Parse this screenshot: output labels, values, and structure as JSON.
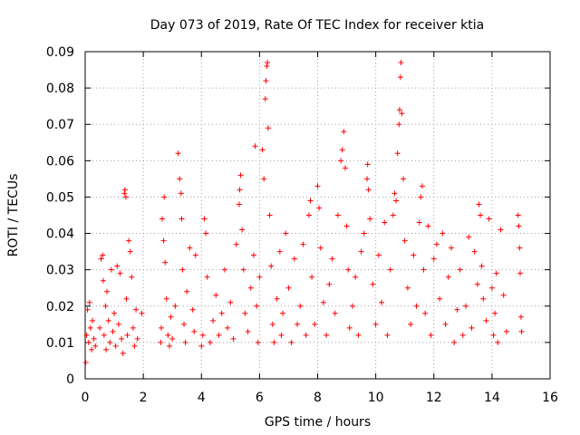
{
  "chart_data": {
    "type": "scatter",
    "title": "Day 073 of 2019, Rate Of TEC Index for receiver ktia",
    "xlabel": "GPS time / hours",
    "ylabel": "ROTI / TECUs",
    "xlim": [
      0,
      16
    ],
    "ylim": [
      0,
      0.09
    ],
    "x_ticks": [
      0,
      2,
      4,
      6,
      8,
      10,
      12,
      14,
      16
    ],
    "x_tick_labels": [
      "0",
      "2",
      "4",
      "6",
      "8",
      "10",
      "12",
      "14",
      "16"
    ],
    "y_ticks": [
      0,
      0.01,
      0.02,
      0.03,
      0.04,
      0.05,
      0.06,
      0.07,
      0.08,
      0.09
    ],
    "y_tick_labels": [
      "0",
      "0.01",
      "0.02",
      "0.03",
      "0.04",
      "0.05",
      "0.06",
      "0.07",
      "0.08",
      "0.09"
    ],
    "grid": true,
    "marker": "+",
    "color": "#ff0000",
    "series": [
      {
        "name": "ROTI",
        "points": [
          [
            0.02,
            0.0045
          ],
          [
            0.05,
            0.012
          ],
          [
            0.08,
            0.019
          ],
          [
            0.12,
            0.01
          ],
          [
            0.15,
            0.021
          ],
          [
            0.18,
            0.014
          ],
          [
            0.22,
            0.008
          ],
          [
            0.25,
            0.016
          ],
          [
            0.3,
            0.011
          ],
          [
            0.35,
            0.009
          ],
          [
            0.5,
            0.014
          ],
          [
            0.55,
            0.033
          ],
          [
            0.6,
            0.034
          ],
          [
            0.62,
            0.027
          ],
          [
            0.65,
            0.012
          ],
          [
            0.7,
            0.02
          ],
          [
            0.72,
            0.008
          ],
          [
            0.75,
            0.024
          ],
          [
            0.8,
            0.016
          ],
          [
            0.85,
            0.01
          ],
          [
            0.9,
            0.03
          ],
          [
            0.95,
            0.013
          ],
          [
            1.0,
            0.018
          ],
          [
            1.05,
            0.009
          ],
          [
            1.1,
            0.031
          ],
          [
            1.15,
            0.015
          ],
          [
            1.2,
            0.029
          ],
          [
            1.25,
            0.011
          ],
          [
            1.3,
            0.007
          ],
          [
            1.35,
            0.051
          ],
          [
            1.37,
            0.052
          ],
          [
            1.4,
            0.05
          ],
          [
            1.42,
            0.022
          ],
          [
            1.45,
            0.012
          ],
          [
            1.5,
            0.038
          ],
          [
            1.55,
            0.035
          ],
          [
            1.6,
            0.028
          ],
          [
            1.65,
            0.014
          ],
          [
            1.7,
            0.009
          ],
          [
            1.75,
            0.019
          ],
          [
            1.8,
            0.011
          ],
          [
            1.95,
            0.018
          ],
          [
            2.6,
            0.01
          ],
          [
            2.62,
            0.014
          ],
          [
            2.65,
            0.044
          ],
          [
            2.7,
            0.038
          ],
          [
            2.72,
            0.05
          ],
          [
            2.75,
            0.032
          ],
          [
            2.8,
            0.022
          ],
          [
            2.85,
            0.012
          ],
          [
            2.9,
            0.009
          ],
          [
            2.95,
            0.017
          ],
          [
            3.0,
            0.011
          ],
          [
            3.1,
            0.02
          ],
          [
            3.2,
            0.062
          ],
          [
            3.25,
            0.055
          ],
          [
            3.3,
            0.051
          ],
          [
            3.32,
            0.044
          ],
          [
            3.35,
            0.03
          ],
          [
            3.4,
            0.015
          ],
          [
            3.45,
            0.01
          ],
          [
            3.5,
            0.024
          ],
          [
            3.6,
            0.036
          ],
          [
            3.7,
            0.019
          ],
          [
            3.75,
            0.013
          ],
          [
            3.8,
            0.034
          ],
          [
            4.0,
            0.009
          ],
          [
            4.05,
            0.012
          ],
          [
            4.1,
            0.044
          ],
          [
            4.15,
            0.04
          ],
          [
            4.2,
            0.028
          ],
          [
            4.3,
            0.01
          ],
          [
            4.4,
            0.016
          ],
          [
            4.5,
            0.023
          ],
          [
            4.6,
            0.012
          ],
          [
            4.7,
            0.018
          ],
          [
            4.8,
            0.03
          ],
          [
            4.9,
            0.014
          ],
          [
            5.0,
            0.021
          ],
          [
            5.1,
            0.011
          ],
          [
            5.2,
            0.037
          ],
          [
            5.3,
            0.048
          ],
          [
            5.32,
            0.052
          ],
          [
            5.35,
            0.056
          ],
          [
            5.4,
            0.041
          ],
          [
            5.45,
            0.03
          ],
          [
            5.5,
            0.018
          ],
          [
            5.6,
            0.013
          ],
          [
            5.7,
            0.025
          ],
          [
            5.8,
            0.034
          ],
          [
            5.85,
            0.064
          ],
          [
            5.9,
            0.02
          ],
          [
            5.95,
            0.01
          ],
          [
            6.0,
            0.028
          ],
          [
            6.1,
            0.063
          ],
          [
            6.15,
            0.055
          ],
          [
            6.2,
            0.077
          ],
          [
            6.22,
            0.082
          ],
          [
            6.25,
            0.086
          ],
          [
            6.27,
            0.087
          ],
          [
            6.3,
            0.069
          ],
          [
            6.35,
            0.045
          ],
          [
            6.4,
            0.031
          ],
          [
            6.45,
            0.015
          ],
          [
            6.5,
            0.01
          ],
          [
            6.6,
            0.022
          ],
          [
            6.7,
            0.035
          ],
          [
            6.75,
            0.012
          ],
          [
            6.8,
            0.018
          ],
          [
            6.9,
            0.04
          ],
          [
            7.0,
            0.025
          ],
          [
            7.1,
            0.01
          ],
          [
            7.2,
            0.033
          ],
          [
            7.3,
            0.015
          ],
          [
            7.4,
            0.02
          ],
          [
            7.5,
            0.037
          ],
          [
            7.6,
            0.012
          ],
          [
            7.7,
            0.045
          ],
          [
            7.75,
            0.049
          ],
          [
            7.8,
            0.028
          ],
          [
            7.9,
            0.015
          ],
          [
            8.0,
            0.053
          ],
          [
            8.05,
            0.047
          ],
          [
            8.1,
            0.036
          ],
          [
            8.2,
            0.021
          ],
          [
            8.3,
            0.012
          ],
          [
            8.4,
            0.026
          ],
          [
            8.5,
            0.033
          ],
          [
            8.6,
            0.018
          ],
          [
            8.7,
            0.045
          ],
          [
            8.8,
            0.06
          ],
          [
            8.85,
            0.063
          ],
          [
            8.9,
            0.068
          ],
          [
            8.95,
            0.058
          ],
          [
            9.0,
            0.042
          ],
          [
            9.05,
            0.03
          ],
          [
            9.1,
            0.014
          ],
          [
            9.2,
            0.02
          ],
          [
            9.3,
            0.028
          ],
          [
            9.4,
            0.012
          ],
          [
            9.5,
            0.035
          ],
          [
            9.6,
            0.04
          ],
          [
            9.7,
            0.055
          ],
          [
            9.72,
            0.059
          ],
          [
            9.75,
            0.052
          ],
          [
            9.8,
            0.044
          ],
          [
            9.9,
            0.026
          ],
          [
            10.0,
            0.015
          ],
          [
            10.1,
            0.034
          ],
          [
            10.2,
            0.021
          ],
          [
            10.3,
            0.043
          ],
          [
            10.4,
            0.012
          ],
          [
            10.5,
            0.03
          ],
          [
            10.6,
            0.045
          ],
          [
            10.65,
            0.051
          ],
          [
            10.7,
            0.049
          ],
          [
            10.75,
            0.062
          ],
          [
            10.8,
            0.07
          ],
          [
            10.82,
            0.074
          ],
          [
            10.85,
            0.083
          ],
          [
            10.87,
            0.087
          ],
          [
            10.9,
            0.073
          ],
          [
            10.95,
            0.055
          ],
          [
            11.0,
            0.038
          ],
          [
            11.1,
            0.025
          ],
          [
            11.2,
            0.015
          ],
          [
            11.3,
            0.034
          ],
          [
            11.4,
            0.02
          ],
          [
            11.5,
            0.043
          ],
          [
            11.55,
            0.05
          ],
          [
            11.6,
            0.053
          ],
          [
            11.65,
            0.03
          ],
          [
            11.7,
            0.018
          ],
          [
            11.8,
            0.042
          ],
          [
            11.9,
            0.012
          ],
          [
            12.0,
            0.033
          ],
          [
            12.1,
            0.037
          ],
          [
            12.2,
            0.022
          ],
          [
            12.3,
            0.04
          ],
          [
            12.4,
            0.015
          ],
          [
            12.5,
            0.028
          ],
          [
            12.6,
            0.036
          ],
          [
            12.7,
            0.01
          ],
          [
            12.8,
            0.019
          ],
          [
            12.9,
            0.03
          ],
          [
            13.0,
            0.012
          ],
          [
            13.1,
            0.02
          ],
          [
            13.2,
            0.039
          ],
          [
            13.3,
            0.014
          ],
          [
            13.4,
            0.035
          ],
          [
            13.5,
            0.026
          ],
          [
            13.55,
            0.048
          ],
          [
            13.6,
            0.045
          ],
          [
            13.65,
            0.031
          ],
          [
            13.7,
            0.022
          ],
          [
            13.8,
            0.016
          ],
          [
            13.9,
            0.044
          ],
          [
            14.0,
            0.025
          ],
          [
            14.05,
            0.012
          ],
          [
            14.1,
            0.018
          ],
          [
            14.15,
            0.029
          ],
          [
            14.2,
            0.01
          ],
          [
            14.3,
            0.041
          ],
          [
            14.4,
            0.023
          ],
          [
            14.5,
            0.013
          ],
          [
            14.9,
            0.045
          ],
          [
            14.92,
            0.042
          ],
          [
            14.95,
            0.036
          ],
          [
            14.97,
            0.029
          ],
          [
            15.0,
            0.017
          ],
          [
            15.02,
            0.013
          ]
        ]
      }
    ]
  }
}
